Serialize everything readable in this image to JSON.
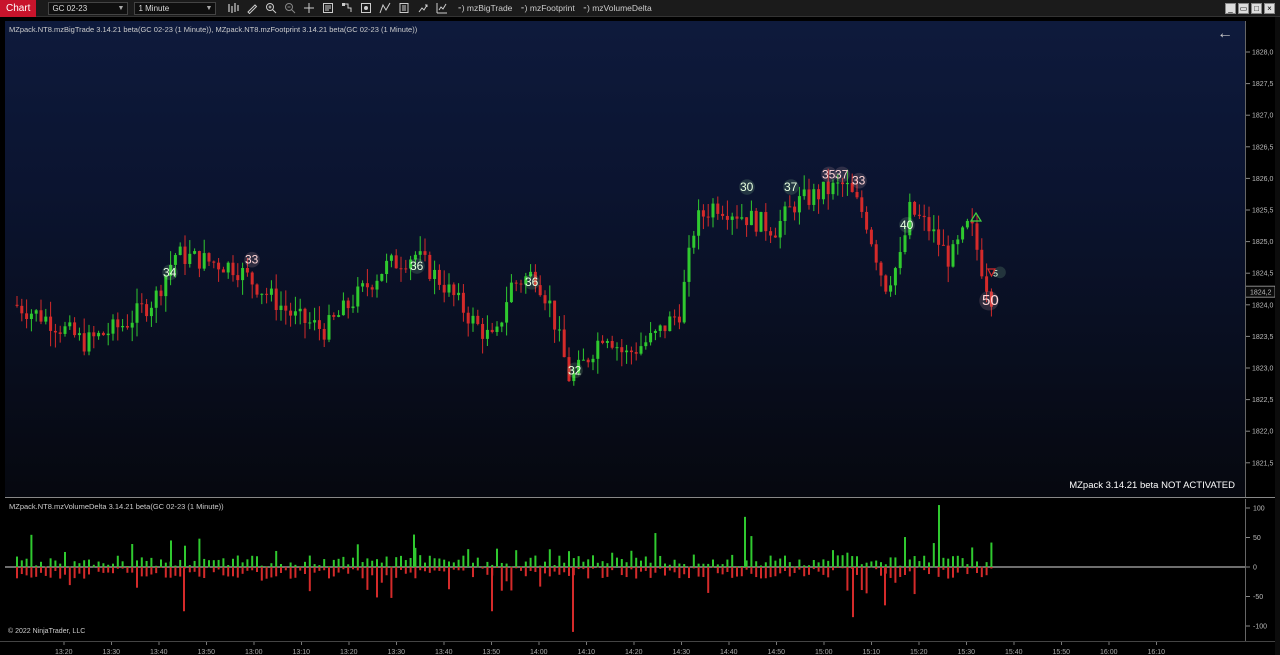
{
  "toolbar": {
    "chart_tab": "Chart",
    "instrument": "GC 02-23",
    "interval": "1 Minute",
    "indicators": [
      "mzBigTrade",
      "mzFootprint",
      "mzVolumeDelta"
    ],
    "tools": [
      "bar-chart-icon",
      "pencil-icon",
      "zoom-in-icon",
      "zoom-out-icon",
      "crosshair-icon",
      "data-box-icon",
      "strategies-icon",
      "screenshot-icon",
      "drawing-tool-icon",
      "properties-icon",
      "instruments-icon",
      "indicators-icon"
    ]
  },
  "window_controls": [
    "minimize",
    "restore",
    "maximize",
    "close"
  ],
  "price_panel": {
    "label": "MZpack.NT8.mzBigTrade 3.14.21 beta(GC 02-23 (1 Minute)), MZpack.NT8.mzFootprint 3.14.21 beta(GC 02-23 (1 Minute))",
    "status": "MZpack 3.14.21 beta NOT ACTIVATED",
    "current_price": "1824,2",
    "price_ticks": [
      "1828,0",
      "1827,5",
      "1827,0",
      "1826,5",
      "1826,0",
      "1825,5",
      "1825,0",
      "1824,5",
      "1824,0",
      "1823,5",
      "1823,0",
      "1822,5",
      "1822,0",
      "1821,5"
    ]
  },
  "delta_panel": {
    "label": "MZpack.NT8.mzVolumeDelta 3.14.21 beta(GC 02-23 (1 Minute))",
    "copyright": "© 2022 NinjaTrader, LLC",
    "ticks": [
      "100",
      "50",
      "0",
      "-50",
      "-100"
    ]
  },
  "time_axis": [
    "13:20",
    "13:30",
    "13:40",
    "13:50",
    "13:00",
    "13:10",
    "13:20",
    "13:30",
    "13:40",
    "13:50",
    "14:00",
    "14:10",
    "14:20",
    "14:30",
    "14:40",
    "14:50",
    "15:00",
    "15:10",
    "15:20",
    "15:30",
    "15:40",
    "15:50",
    "16:00",
    "16:10"
  ],
  "big_trades": [
    {
      "label": "34",
      "color": "green"
    },
    {
      "label": "33",
      "color": "red"
    },
    {
      "label": "36",
      "color": "green"
    },
    {
      "label": "36",
      "color": "green"
    },
    {
      "label": "32",
      "color": "green"
    },
    {
      "label": "30",
      "color": "green"
    },
    {
      "label": "37",
      "color": "green"
    },
    {
      "label": "35",
      "color": "red"
    },
    {
      "label": "37",
      "color": "red"
    },
    {
      "label": "33",
      "color": "red"
    },
    {
      "label": "40",
      "color": "green"
    },
    {
      "label": "50",
      "color": "red"
    },
    {
      "label": "5",
      "color": "green"
    }
  ],
  "colors": {
    "up": "#2fc92f",
    "down": "#d42a2a",
    "accent": "#c8142c"
  }
}
